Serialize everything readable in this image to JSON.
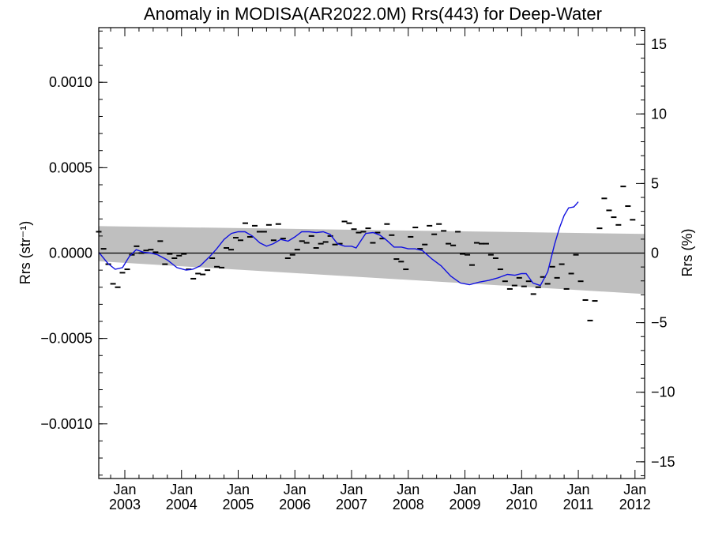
{
  "chart_data": {
    "type": "scatter",
    "title": "Anomaly in MODISA(AR2022.0M) Rrs(443) for Deep-Water",
    "ylabel_left": "Rrs (str⁻¹)",
    "ylabel_right": "Rrs (%)",
    "left_axis": {
      "ylim": [
        -0.00132,
        0.00132
      ],
      "ticks": [
        {
          "value": 0.001,
          "label": "0.0010"
        },
        {
          "value": 0.0005,
          "label": "0.0005"
        },
        {
          "value": 0.0,
          "label": "0.0000"
        },
        {
          "value": -0.0005,
          "label": "−0.0005"
        },
        {
          "value": -0.001,
          "label": "−0.0010"
        }
      ],
      "minor_step": 0.0001
    },
    "right_axis": {
      "ylim": [
        -16.2,
        16.2
      ],
      "ticks": [
        {
          "value": 15,
          "label": "15"
        },
        {
          "value": 10,
          "label": "10"
        },
        {
          "value": 5,
          "label": "5"
        },
        {
          "value": 0,
          "label": "0"
        },
        {
          "value": -5,
          "label": "−5"
        },
        {
          "value": -10,
          "label": "−10"
        },
        {
          "value": -15,
          "label": "−15"
        }
      ],
      "minor_step": 1
    },
    "xlim": [
      2002.54,
      2012.17
    ],
    "x_ticks": [
      {
        "value": 2003.0,
        "line1": "Jan",
        "line2": "2003"
      },
      {
        "value": 2004.0,
        "line1": "Jan",
        "line2": "2004"
      },
      {
        "value": 2005.0,
        "line1": "Jan",
        "line2": "2005"
      },
      {
        "value": 2006.0,
        "line1": "Jan",
        "line2": "2006"
      },
      {
        "value": 2007.0,
        "line1": "Jan",
        "line2": "2007"
      },
      {
        "value": 2008.0,
        "line1": "Jan",
        "line2": "2008"
      },
      {
        "value": 2009.0,
        "line1": "Jan",
        "line2": "2009"
      },
      {
        "value": 2010.0,
        "line1": "Jan",
        "line2": "2010"
      },
      {
        "value": 2011.0,
        "line1": "Jan",
        "line2": "2011"
      },
      {
        "value": 2012.0,
        "line1": "Jan",
        "line2": "2012"
      }
    ],
    "band": {
      "x": [
        2002.54,
        2012.17
      ],
      "upper": [
        0.000158,
        0.000112
      ],
      "lower": [
        -4.8e-05,
        -0.00024
      ]
    },
    "points": [
      [
        2002.54,
        0.000125
      ],
      [
        2002.625,
        2.5e-05
      ],
      [
        2002.708,
        -6.5e-05
      ],
      [
        2002.792,
        -0.00018
      ],
      [
        2002.875,
        -0.0002
      ],
      [
        2002.958,
        -0.000115
      ],
      [
        2003.042,
        -9.5e-05
      ],
      [
        2003.125,
        -1e-05
      ],
      [
        2003.208,
        4e-05
      ],
      [
        2003.292,
        0.0
      ],
      [
        2003.375,
        1.5e-05
      ],
      [
        2003.458,
        2e-05
      ],
      [
        2003.542,
        5e-06
      ],
      [
        2003.625,
        7e-05
      ],
      [
        2003.708,
        -6.5e-05
      ],
      [
        2003.792,
        -5e-06
      ],
      [
        2003.875,
        -3e-05
      ],
      [
        2003.958,
        -1.5e-05
      ],
      [
        2004.042,
        -5e-06
      ],
      [
        2004.125,
        -9.5e-05
      ],
      [
        2004.208,
        -0.00015
      ],
      [
        2004.292,
        -0.00012
      ],
      [
        2004.375,
        -0.000125
      ],
      [
        2004.458,
        -0.0001
      ],
      [
        2004.542,
        -3e-05
      ],
      [
        2004.625,
        -8e-05
      ],
      [
        2004.708,
        -8.5e-05
      ],
      [
        2004.792,
        3e-05
      ],
      [
        2004.875,
        2e-05
      ],
      [
        2004.958,
        9e-05
      ],
      [
        2005.042,
        7.5e-05
      ],
      [
        2005.125,
        0.000175
      ],
      [
        2005.208,
        9.5e-05
      ],
      [
        2005.292,
        0.00016
      ],
      [
        2005.375,
        0.000125
      ],
      [
        2005.458,
        0.000125
      ],
      [
        2005.542,
        0.000165
      ],
      [
        2005.625,
        7.5e-05
      ],
      [
        2005.708,
        0.00017
      ],
      [
        2005.792,
        8.5e-05
      ],
      [
        2005.875,
        -3e-05
      ],
      [
        2005.958,
        -1e-05
      ],
      [
        2006.042,
        2e-05
      ],
      [
        2006.125,
        7e-05
      ],
      [
        2006.208,
        6e-05
      ],
      [
        2006.292,
        0.0001
      ],
      [
        2006.375,
        3e-05
      ],
      [
        2006.458,
        5.5e-05
      ],
      [
        2006.542,
        6.5e-05
      ],
      [
        2006.625,
        0.0001
      ],
      [
        2006.708,
        5e-05
      ],
      [
        2006.792,
        5.5e-05
      ],
      [
        2006.875,
        0.000185
      ],
      [
        2006.958,
        0.000175
      ],
      [
        2007.042,
        0.00014
      ],
      [
        2007.125,
        0.00012
      ],
      [
        2007.208,
        0.000125
      ],
      [
        2007.292,
        0.000145
      ],
      [
        2007.375,
        6e-05
      ],
      [
        2007.458,
        0.00012
      ],
      [
        2007.542,
        8.5e-05
      ],
      [
        2007.625,
        0.00017
      ],
      [
        2007.708,
        0.000105
      ],
      [
        2007.792,
        -3.5e-05
      ],
      [
        2007.875,
        -5e-05
      ],
      [
        2007.958,
        -9.5e-05
      ],
      [
        2008.042,
        9.5e-05
      ],
      [
        2008.125,
        0.00015
      ],
      [
        2008.208,
        2.5e-05
      ],
      [
        2008.292,
        5e-05
      ],
      [
        2008.375,
        0.00016
      ],
      [
        2008.458,
        0.00011
      ],
      [
        2008.542,
        0.00017
      ],
      [
        2008.625,
        0.00013
      ],
      [
        2008.708,
        5.5e-05
      ],
      [
        2008.792,
        4.5e-05
      ],
      [
        2008.875,
        0.000125
      ],
      [
        2008.958,
        -5e-06
      ],
      [
        2009.042,
        -1e-05
      ],
      [
        2009.125,
        -7e-05
      ],
      [
        2009.208,
        6e-05
      ],
      [
        2009.292,
        5.5e-05
      ],
      [
        2009.375,
        5.5e-05
      ],
      [
        2009.458,
        -1e-05
      ],
      [
        2009.542,
        -3e-05
      ],
      [
        2009.625,
        -9.5e-05
      ],
      [
        2009.708,
        -0.000165
      ],
      [
        2009.792,
        -0.00021
      ],
      [
        2009.875,
        -0.00019
      ],
      [
        2009.958,
        -0.000145
      ],
      [
        2010.042,
        -0.000195
      ],
      [
        2010.125,
        -0.000165
      ],
      [
        2010.208,
        -0.00024
      ],
      [
        2010.292,
        -0.0002
      ],
      [
        2010.375,
        -0.00014
      ],
      [
        2010.458,
        -0.00018
      ],
      [
        2010.542,
        -8e-05
      ],
      [
        2010.625,
        -0.000145
      ],
      [
        2010.708,
        -6.5e-05
      ],
      [
        2010.792,
        -0.00021
      ],
      [
        2010.875,
        -0.00012
      ],
      [
        2010.958,
        -1e-05
      ],
      [
        2011.042,
        -0.000165
      ],
      [
        2011.125,
        -0.000275
      ],
      [
        2011.208,
        -0.000395
      ],
      [
        2011.292,
        -0.00028
      ],
      [
        2011.375,
        0.000145
      ],
      [
        2011.458,
        0.00032
      ],
      [
        2011.542,
        0.00025
      ],
      [
        2011.625,
        0.00021
      ],
      [
        2011.708,
        0.000165
      ],
      [
        2011.792,
        0.00039
      ],
      [
        2011.875,
        0.000275
      ],
      [
        2011.958,
        0.000195
      ]
    ],
    "smooth_line": [
      [
        2002.54,
        5e-06
      ],
      [
        2002.7,
        -6e-05
      ],
      [
        2002.83,
        -9.5e-05
      ],
      [
        2002.96,
        -8.5e-05
      ],
      [
        2003.08,
        -2e-05
      ],
      [
        2003.2,
        2e-05
      ],
      [
        2003.33,
        5e-06
      ],
      [
        2003.46,
        0.0
      ],
      [
        2003.58,
        -1e-05
      ],
      [
        2003.75,
        -4e-05
      ],
      [
        2003.92,
        -8.5e-05
      ],
      [
        2004.08,
        -0.0001
      ],
      [
        2004.2,
        -9.5e-05
      ],
      [
        2004.33,
        -7.5e-05
      ],
      [
        2004.5,
        -2e-05
      ],
      [
        2004.62,
        2.5e-05
      ],
      [
        2004.75,
        8e-05
      ],
      [
        2004.88,
        0.000115
      ],
      [
        2005.0,
        0.000125
      ],
      [
        2005.12,
        0.000125
      ],
      [
        2005.25,
        0.0001
      ],
      [
        2005.38,
        6e-05
      ],
      [
        2005.5,
        4e-05
      ],
      [
        2005.62,
        5.5e-05
      ],
      [
        2005.75,
        8e-05
      ],
      [
        2005.88,
        7e-05
      ],
      [
        2006.0,
        9.5e-05
      ],
      [
        2006.12,
        0.000125
      ],
      [
        2006.25,
        0.000125
      ],
      [
        2006.38,
        0.00012
      ],
      [
        2006.5,
        0.000125
      ],
      [
        2006.62,
        0.00011
      ],
      [
        2006.75,
        5.5e-05
      ],
      [
        2006.88,
        4e-05
      ],
      [
        2007.0,
        4e-05
      ],
      [
        2007.08,
        3e-05
      ],
      [
        2007.17,
        7.5e-05
      ],
      [
        2007.25,
        0.000115
      ],
      [
        2007.38,
        0.00012
      ],
      [
        2007.5,
        0.000105
      ],
      [
        2007.62,
        7.5e-05
      ],
      [
        2007.75,
        3.5e-05
      ],
      [
        2007.88,
        3.5e-05
      ],
      [
        2008.0,
        2.5e-05
      ],
      [
        2008.12,
        2.5e-05
      ],
      [
        2008.25,
        1.5e-05
      ],
      [
        2008.42,
        -3.5e-05
      ],
      [
        2008.58,
        -7.5e-05
      ],
      [
        2008.75,
        -0.000135
      ],
      [
        2008.92,
        -0.000175
      ],
      [
        2009.08,
        -0.000185
      ],
      [
        2009.25,
        -0.00017
      ],
      [
        2009.42,
        -0.00016
      ],
      [
        2009.58,
        -0.000145
      ],
      [
        2009.75,
        -0.000125
      ],
      [
        2009.88,
        -0.00013
      ],
      [
        2010.0,
        -0.00012
      ],
      [
        2010.08,
        -0.00012
      ],
      [
        2010.2,
        -0.000175
      ],
      [
        2010.33,
        -0.00019
      ],
      [
        2010.46,
        -0.00011
      ],
      [
        2010.58,
        5e-05
      ],
      [
        2010.67,
        0.00015
      ],
      [
        2010.75,
        0.00022
      ],
      [
        2010.83,
        0.000265
      ],
      [
        2010.92,
        0.00027
      ],
      [
        2010.96,
        0.000285
      ],
      [
        2011.0,
        0.0003
      ]
    ],
    "zero_line": 0,
    "grid": false
  }
}
